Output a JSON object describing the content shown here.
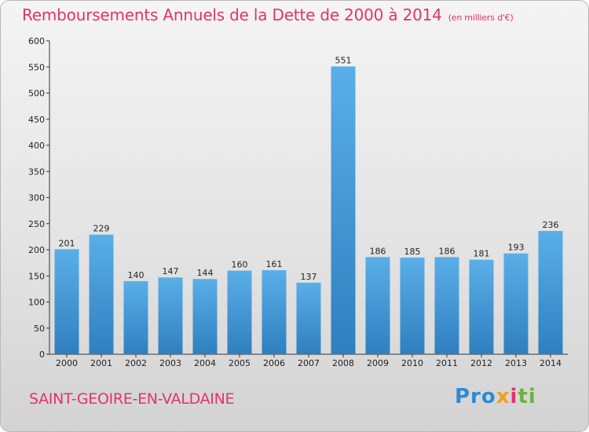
{
  "header": {
    "title": "Remboursements Annuels de la Dette de 2000 à 2014",
    "unit": "(en milliers d'€)"
  },
  "footer": {
    "commune": "SAINT-GEOIRE-EN-VALDAINE",
    "logo": {
      "p1": "Pro",
      "p2": "x",
      "p3": "i",
      "p4": "ti"
    }
  },
  "colors": {
    "title": "#e2336a",
    "bar_top": "#5aafe8",
    "bar_bottom": "#2f7fbf"
  },
  "chart_data": {
    "type": "bar",
    "title": "Remboursements Annuels de la Dette de 2000 à 2014",
    "subtitle": "(en milliers d'€)",
    "xlabel": "",
    "ylabel": "",
    "categories": [
      "2000",
      "2001",
      "2002",
      "2003",
      "2004",
      "2005",
      "2006",
      "2007",
      "2008",
      "2009",
      "2010",
      "2011",
      "2012",
      "2013",
      "2014"
    ],
    "values": [
      201,
      229,
      140,
      147,
      144,
      160,
      161,
      137,
      551,
      186,
      185,
      186,
      181,
      193,
      236
    ],
    "ylim": [
      0,
      600
    ],
    "yticks": [
      0,
      50,
      100,
      150,
      200,
      250,
      300,
      350,
      400,
      450,
      500,
      550,
      600
    ],
    "grid": false,
    "legend": "none",
    "data_labels": true
  }
}
